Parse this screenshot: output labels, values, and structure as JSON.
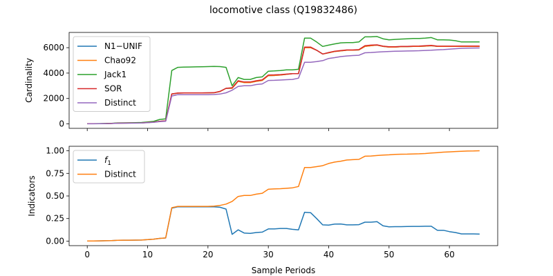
{
  "figure": {
    "title": "locomotive class (Q19832486)",
    "xlabel": "Sample Periods"
  },
  "chart_data": [
    {
      "type": "line",
      "ylabel": "Cardinality",
      "xlim": [
        -3,
        68
      ],
      "ylim": [
        -350,
        7200
      ],
      "xticks": [
        0,
        10,
        20,
        30,
        40,
        50,
        60
      ],
      "yticks": [
        0,
        2000,
        4000,
        6000
      ],
      "legend": "top-left",
      "x": [
        0,
        1,
        2,
        3,
        4,
        5,
        6,
        7,
        8,
        9,
        10,
        11,
        12,
        13,
        14,
        15,
        16,
        17,
        18,
        19,
        20,
        21,
        22,
        23,
        24,
        25,
        26,
        27,
        28,
        29,
        30,
        31,
        32,
        33,
        34,
        35,
        36,
        37,
        38,
        39,
        40,
        41,
        42,
        43,
        44,
        45,
        46,
        47,
        48,
        49,
        50,
        51,
        52,
        53,
        54,
        55,
        56,
        57,
        58,
        59,
        60,
        61,
        62,
        63,
        64,
        65
      ],
      "series": [
        {
          "name": "N1−UNIF",
          "color": "#1f77b4",
          "values": [
            15,
            15,
            20,
            25,
            35,
            60,
            65,
            70,
            75,
            80,
            110,
            140,
            200,
            230,
            2350,
            2420,
            2430,
            2430,
            2430,
            2430,
            2440,
            2450,
            2550,
            2800,
            2800,
            3350,
            3250,
            3250,
            3350,
            3420,
            3800,
            3810,
            3850,
            3900,
            3950,
            3950,
            6000,
            6000,
            5800,
            5500,
            5600,
            5700,
            5750,
            5800,
            5800,
            5820,
            6100,
            6150,
            6200,
            6100,
            6050,
            6050,
            6080,
            6080,
            6100,
            6100,
            6120,
            6150,
            6100,
            6100,
            6100,
            6100,
            6100,
            6100,
            6100,
            6100
          ]
        },
        {
          "name": "Chao92",
          "color": "#ff7f0e",
          "values": [
            15,
            15,
            20,
            25,
            35,
            60,
            65,
            70,
            75,
            80,
            110,
            140,
            200,
            230,
            2350,
            2420,
            2430,
            2430,
            2430,
            2430,
            2440,
            2450,
            2550,
            2800,
            2800,
            3350,
            3250,
            3250,
            3350,
            3420,
            3800,
            3810,
            3850,
            3900,
            3950,
            3950,
            6000,
            6000,
            5800,
            5500,
            5600,
            5700,
            5750,
            5800,
            5800,
            5820,
            6100,
            6150,
            6200,
            6100,
            6050,
            6050,
            6080,
            6080,
            6100,
            6100,
            6120,
            6150,
            6100,
            6100,
            6100,
            6100,
            6100,
            6100,
            6100,
            6100
          ]
        },
        {
          "name": "Jack1",
          "color": "#2ca02c",
          "values": [
            20,
            20,
            25,
            30,
            40,
            80,
            85,
            90,
            100,
            110,
            150,
            200,
            350,
            400,
            4200,
            4450,
            4470,
            4480,
            4490,
            4500,
            4510,
            4520,
            4510,
            4450,
            3000,
            3650,
            3500,
            3500,
            3650,
            3700,
            4150,
            4170,
            4200,
            4250,
            4250,
            4300,
            6750,
            6750,
            6450,
            6100,
            6200,
            6300,
            6380,
            6400,
            6400,
            6450,
            6850,
            6850,
            6880,
            6700,
            6620,
            6650,
            6680,
            6700,
            6720,
            6730,
            6750,
            6800,
            6620,
            6620,
            6600,
            6550,
            6450,
            6450,
            6450,
            6450
          ]
        },
        {
          "name": "SOR",
          "color": "#d62728",
          "values": [
            15,
            15,
            20,
            25,
            35,
            60,
            65,
            70,
            75,
            80,
            110,
            140,
            210,
            240,
            2360,
            2430,
            2440,
            2440,
            2440,
            2440,
            2450,
            2460,
            2560,
            2800,
            2850,
            3400,
            3300,
            3300,
            3400,
            3470,
            3850,
            3860,
            3880,
            3920,
            3950,
            3960,
            6050,
            6050,
            5800,
            5500,
            5620,
            5720,
            5770,
            5820,
            5820,
            5850,
            6150,
            6200,
            6220,
            6120,
            6070,
            6070,
            6100,
            6100,
            6120,
            6130,
            6150,
            6180,
            6120,
            6120,
            6120,
            6120,
            6130,
            6130,
            6130,
            6130
          ]
        },
        {
          "name": "Distinct",
          "color": "#9467bd",
          "values": [
            10,
            10,
            15,
            20,
            30,
            50,
            55,
            60,
            65,
            70,
            100,
            130,
            180,
            210,
            2200,
            2300,
            2300,
            2300,
            2300,
            2300,
            2300,
            2310,
            2350,
            2450,
            2650,
            2950,
            3000,
            3000,
            3100,
            3150,
            3420,
            3430,
            3450,
            3480,
            3500,
            3600,
            4850,
            4850,
            4900,
            4980,
            5150,
            5220,
            5300,
            5350,
            5380,
            5400,
            5600,
            5620,
            5650,
            5680,
            5700,
            5720,
            5730,
            5740,
            5750,
            5760,
            5780,
            5800,
            5830,
            5850,
            5880,
            5920,
            5950,
            5960,
            5970,
            5980
          ]
        }
      ]
    },
    {
      "type": "line",
      "ylabel": "Indicators",
      "xlim": [
        -3,
        68
      ],
      "ylim": [
        -0.05,
        1.05
      ],
      "xticks": [
        0,
        10,
        20,
        30,
        40,
        50,
        60
      ],
      "yticks": [
        0.0,
        0.25,
        0.5,
        0.75,
        1.0
      ],
      "ytick_labels": [
        "0.00",
        "0.25",
        "0.50",
        "0.75",
        "1.00"
      ],
      "legend": "top-left",
      "x": [
        0,
        1,
        2,
        3,
        4,
        5,
        6,
        7,
        8,
        9,
        10,
        11,
        12,
        13,
        14,
        15,
        16,
        17,
        18,
        19,
        20,
        21,
        22,
        23,
        24,
        25,
        26,
        27,
        28,
        29,
        30,
        31,
        32,
        33,
        34,
        35,
        36,
        37,
        38,
        39,
        40,
        41,
        42,
        43,
        44,
        45,
        46,
        47,
        48,
        49,
        50,
        51,
        52,
        53,
        54,
        55,
        56,
        57,
        58,
        59,
        60,
        61,
        62,
        63,
        64,
        65
      ],
      "series": [
        {
          "name": "f1",
          "label_base": "f",
          "label_sub": "1",
          "color": "#1f77b4",
          "values": [
            0.002,
            0.002,
            0.003,
            0.004,
            0.005,
            0.009,
            0.01,
            0.01,
            0.011,
            0.012,
            0.017,
            0.022,
            0.03,
            0.035,
            0.365,
            0.38,
            0.38,
            0.38,
            0.38,
            0.38,
            0.38,
            0.38,
            0.375,
            0.355,
            0.075,
            0.125,
            0.09,
            0.085,
            0.095,
            0.1,
            0.135,
            0.135,
            0.14,
            0.14,
            0.13,
            0.125,
            0.32,
            0.315,
            0.25,
            0.18,
            0.178,
            0.188,
            0.19,
            0.18,
            0.18,
            0.182,
            0.21,
            0.21,
            0.215,
            0.17,
            0.158,
            0.16,
            0.16,
            0.162,
            0.163,
            0.163,
            0.165,
            0.165,
            0.12,
            0.12,
            0.105,
            0.095,
            0.08,
            0.08,
            0.08,
            0.078
          ]
        },
        {
          "name": "Distinct",
          "color": "#ff7f0e",
          "values": [
            0.002,
            0.002,
            0.003,
            0.004,
            0.005,
            0.009,
            0.01,
            0.01,
            0.011,
            0.012,
            0.017,
            0.022,
            0.03,
            0.035,
            0.37,
            0.385,
            0.385,
            0.385,
            0.385,
            0.385,
            0.385,
            0.387,
            0.395,
            0.41,
            0.44,
            0.495,
            0.505,
            0.505,
            0.52,
            0.53,
            0.575,
            0.578,
            0.58,
            0.585,
            0.59,
            0.605,
            0.815,
            0.815,
            0.825,
            0.835,
            0.86,
            0.875,
            0.885,
            0.898,
            0.902,
            0.905,
            0.94,
            0.942,
            0.948,
            0.952,
            0.955,
            0.96,
            0.962,
            0.963,
            0.965,
            0.967,
            0.97,
            0.975,
            0.98,
            0.985,
            0.988,
            0.992,
            0.995,
            0.997,
            0.998,
            1.0
          ]
        }
      ]
    }
  ]
}
